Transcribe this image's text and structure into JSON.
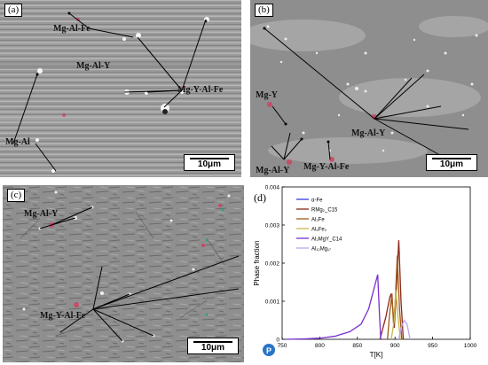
{
  "panel_a": {
    "tag": "(a)",
    "labels": [
      "Mg-Al-Fe",
      "Mg-Al-Y",
      "Mg-Y-Al-Fe",
      "Mg-Al"
    ],
    "scale_bar": "10μm"
  },
  "panel_b": {
    "tag": "(b)",
    "labels": [
      "Mg-Y",
      "Mg-Al-Y",
      "Mg-Al-Y",
      "Mg-Y-Al-Fe"
    ],
    "scale_bar": "10μm"
  },
  "panel_c": {
    "tag": "(c)",
    "labels": [
      "Mg-Al-Y",
      "Mg-Y-Al-Fe"
    ],
    "scale_bar": "10μm"
  },
  "panel_d": {
    "tag": "(d)",
    "badge": "P"
  },
  "chart_data": {
    "type": "line",
    "xlabel": "T[K]",
    "ylabel": "Phase fraction",
    "xlim": [
      750,
      1000
    ],
    "ylim": [
      0,
      0.004
    ],
    "xticks": [
      "750",
      "800",
      "850",
      "900",
      "950",
      "1000"
    ],
    "yticks": [
      "0",
      "0.001",
      "0.002",
      "0.003",
      "0.004"
    ],
    "legend_position": "top-left",
    "series": [
      {
        "name": "α-Fe",
        "color": "#3a3ae0",
        "x": [],
        "y": []
      },
      {
        "name": "RMg₂_C15",
        "color": "#8b2a1a",
        "x": [
          880,
          884,
          888,
          891,
          893,
          895,
          897,
          899,
          901,
          903,
          905,
          908,
          911
        ],
        "y": [
          0,
          0.0003,
          0.0006,
          0.0009,
          0.0011,
          0.0012,
          0.0008,
          0.0003,
          0.001,
          0.0018,
          0.0026,
          0.001,
          0
        ]
      },
      {
        "name": "Al₂Fe",
        "color": "#a05a1a",
        "x": [
          890,
          893,
          896,
          898,
          900,
          903,
          906,
          909
        ],
        "y": [
          0,
          0.0007,
          0.0012,
          0.0004,
          0.0009,
          0.0022,
          0.0008,
          0
        ]
      },
      {
        "name": "Al₅Fe₂",
        "color": "#c9b64a",
        "x": [
          895,
          899,
          901,
          904,
          907
        ],
        "y": [
          0,
          0.0005,
          0.0013,
          0.0006,
          0
        ]
      },
      {
        "name": "Al₂MgY_C14",
        "color": "#7a2fd0",
        "x": [
          755,
          780,
          800,
          820,
          840,
          855,
          865,
          873,
          877,
          879,
          881
        ],
        "y": [
          0,
          1e-05,
          3e-05,
          8e-05,
          0.0002,
          0.0004,
          0.0008,
          0.0014,
          0.0017,
          0.0008,
          0
        ]
      },
      {
        "name": "Al₁₂Mg₁₇",
        "color": "#b9a6f0",
        "x": [
          905,
          908,
          912,
          916,
          920
        ],
        "y": [
          0,
          0.0003,
          0.0005,
          0.0004,
          0
        ]
      }
    ]
  }
}
